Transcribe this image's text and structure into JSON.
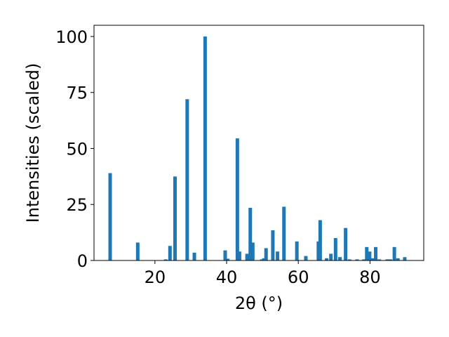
{
  "chart_data": {
    "type": "bar",
    "xlabel": "2θ (°)",
    "ylabel": "Intensities (scaled)",
    "xlim": [
      3,
      95
    ],
    "ylim": [
      0,
      105
    ],
    "xticks": [
      20,
      40,
      60,
      80
    ],
    "yticks": [
      0,
      25,
      50,
      75,
      100
    ],
    "grid": false,
    "color": "#1f77b4",
    "x": [
      7.5,
      15.2,
      23.0,
      24.2,
      25.6,
      29.0,
      31.0,
      34.0,
      39.6,
      40.3,
      43.0,
      43.6,
      45.7,
      46.6,
      47.3,
      49.8,
      50.4,
      51.0,
      52.9,
      54.2,
      56.0,
      59.6,
      62.1,
      65.6,
      66.1,
      67.9,
      69.1,
      70.4,
      71.6,
      73.2,
      74.3,
      76.4,
      78.3,
      79.1,
      79.9,
      80.7,
      81.6,
      82.6,
      84.8,
      85.7,
      86.8,
      87.8,
      89.7
    ],
    "y": [
      39,
      8,
      0.5,
      6.5,
      37.5,
      72,
      3.5,
      100,
      4.5,
      0.8,
      54.5,
      4,
      3,
      23.5,
      8,
      0.5,
      1,
      5.5,
      13.5,
      4,
      24,
      8.5,
      2,
      8.5,
      18,
      1,
      3,
      10,
      1.5,
      14.5,
      0.5,
      0.5,
      0.5,
      6,
      4,
      1,
      6,
      0.5,
      0.5,
      0.5,
      6,
      1,
      1.5
    ]
  }
}
